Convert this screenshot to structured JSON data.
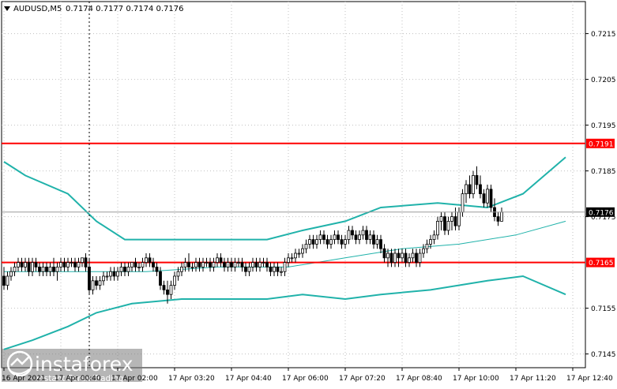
{
  "header": {
    "symbol": "AUDUSD,M5",
    "ohlc": "0.7174 0.7177 0.7174 0.7176"
  },
  "colors": {
    "background": "#ffffff",
    "grid": "#c0c0c0",
    "bullish": "#ffffff",
    "bearish": "#000000",
    "candle_outline": "#000000",
    "band": "#20b2aa",
    "middle_band": "#20b2aa",
    "level_line": "#ff0000",
    "level_label_bg": "#ff0000",
    "price_label_bg": "#000000",
    "crosshair": "#000000"
  },
  "watermark": {
    "brand": "instaforex",
    "tagline": "Instant Forex Trading"
  },
  "chart_data": {
    "type": "candlestick",
    "timeframe": "M5",
    "ylim": [
      0.7142,
      0.7222
    ],
    "y_ticks": [
      "0.7215",
      "0.7205",
      "0.7195",
      "0.7185",
      "0.7175",
      "0.7155",
      "0.7145"
    ],
    "x_ticks": [
      {
        "label": "16 Apr 2021",
        "bar": 0
      },
      {
        "label": "17 Apr 00:40",
        "bar": 16
      },
      {
        "label": "17 Apr 02:00",
        "bar": 32
      },
      {
        "label": "17 Apr 03:20",
        "bar": 48
      },
      {
        "label": "17 Apr 04:40",
        "bar": 64
      },
      {
        "label": "17 Apr 06:00",
        "bar": 80
      },
      {
        "label": "17 Apr 07:20",
        "bar": 96
      },
      {
        "label": "17 Apr 08:40",
        "bar": 112
      },
      {
        "label": "17 Apr 10:00",
        "bar": 128
      },
      {
        "label": "17 Apr 11:20",
        "bar": 144
      },
      {
        "label": "17 Apr 12:40",
        "bar": 160
      }
    ],
    "levels": [
      {
        "value": 0.7191,
        "label": "0.7191"
      },
      {
        "value": 0.7165,
        "label": "0.7165"
      }
    ],
    "current_price": {
      "value": 0.7176,
      "label": "0.7176"
    },
    "crosshair_bar": 24,
    "candles": [
      [
        0.7162,
        0.7164,
        0.7159,
        0.716
      ],
      [
        0.716,
        0.7163,
        0.7159,
        0.7162
      ],
      [
        0.7162,
        0.7164,
        0.7161,
        0.7163
      ],
      [
        0.7163,
        0.7165,
        0.7162,
        0.7164
      ],
      [
        0.7164,
        0.7166,
        0.7163,
        0.7165
      ],
      [
        0.7165,
        0.7166,
        0.7163,
        0.7164
      ],
      [
        0.7164,
        0.7166,
        0.7163,
        0.7165
      ],
      [
        0.7165,
        0.7166,
        0.7162,
        0.7163
      ],
      [
        0.7163,
        0.7166,
        0.7162,
        0.7165
      ],
      [
        0.7165,
        0.7166,
        0.7163,
        0.7164
      ],
      [
        0.7164,
        0.7165,
        0.7162,
        0.7163
      ],
      [
        0.7163,
        0.7165,
        0.7162,
        0.7164
      ],
      [
        0.7164,
        0.7165,
        0.7162,
        0.7163
      ],
      [
        0.7163,
        0.7165,
        0.7162,
        0.7164
      ],
      [
        0.7164,
        0.7166,
        0.7162,
        0.7163
      ],
      [
        0.7163,
        0.7165,
        0.7161,
        0.7164
      ],
      [
        0.7164,
        0.7166,
        0.7163,
        0.7165
      ],
      [
        0.7165,
        0.7166,
        0.7163,
        0.7164
      ],
      [
        0.7164,
        0.7166,
        0.7163,
        0.7165
      ],
      [
        0.7165,
        0.7166,
        0.7164,
        0.7165
      ],
      [
        0.7165,
        0.7166,
        0.7163,
        0.7164
      ],
      [
        0.7164,
        0.7166,
        0.7163,
        0.7165
      ],
      [
        0.7165,
        0.7166,
        0.7164,
        0.7166
      ],
      [
        0.7166,
        0.7167,
        0.7163,
        0.7164
      ],
      [
        0.7164,
        0.7166,
        0.7158,
        0.7159
      ],
      [
        0.7159,
        0.7162,
        0.7158,
        0.7161
      ],
      [
        0.7161,
        0.7162,
        0.7159,
        0.716
      ],
      [
        0.716,
        0.7162,
        0.7159,
        0.7161
      ],
      [
        0.7161,
        0.7163,
        0.716,
        0.7162
      ],
      [
        0.7162,
        0.7163,
        0.7161,
        0.7162
      ],
      [
        0.7162,
        0.7164,
        0.7161,
        0.7163
      ],
      [
        0.7163,
        0.7164,
        0.7161,
        0.7162
      ],
      [
        0.7162,
        0.7164,
        0.7161,
        0.7163
      ],
      [
        0.7163,
        0.7165,
        0.7162,
        0.7164
      ],
      [
        0.7164,
        0.7165,
        0.7162,
        0.7163
      ],
      [
        0.7163,
        0.7165,
        0.7162,
        0.7164
      ],
      [
        0.7164,
        0.7165,
        0.7163,
        0.7165
      ],
      [
        0.7165,
        0.7166,
        0.7163,
        0.7164
      ],
      [
        0.7164,
        0.7165,
        0.7163,
        0.7164
      ],
      [
        0.7164,
        0.7166,
        0.7163,
        0.7165
      ],
      [
        0.7165,
        0.7167,
        0.7164,
        0.7166
      ],
      [
        0.7166,
        0.7167,
        0.7164,
        0.7165
      ],
      [
        0.7165,
        0.7166,
        0.7163,
        0.7164
      ],
      [
        0.7164,
        0.7165,
        0.7162,
        0.7163
      ],
      [
        0.7163,
        0.7164,
        0.7159,
        0.716
      ],
      [
        0.716,
        0.7161,
        0.7158,
        0.7159
      ],
      [
        0.7159,
        0.7161,
        0.7156,
        0.7158
      ],
      [
        0.7158,
        0.7161,
        0.7157,
        0.716
      ],
      [
        0.716,
        0.7163,
        0.7159,
        0.7162
      ],
      [
        0.7162,
        0.7164,
        0.7161,
        0.7163
      ],
      [
        0.7163,
        0.7165,
        0.7162,
        0.7164
      ],
      [
        0.7164,
        0.7166,
        0.7163,
        0.7165
      ],
      [
        0.7165,
        0.7167,
        0.7163,
        0.7164
      ],
      [
        0.7164,
        0.7165,
        0.7163,
        0.7164
      ],
      [
        0.7164,
        0.7166,
        0.7163,
        0.7165
      ],
      [
        0.7165,
        0.7166,
        0.7163,
        0.7164
      ],
      [
        0.7164,
        0.7166,
        0.7163,
        0.7165
      ],
      [
        0.7165,
        0.7166,
        0.7164,
        0.7165
      ],
      [
        0.7165,
        0.7166,
        0.7163,
        0.7164
      ],
      [
        0.7164,
        0.7166,
        0.7163,
        0.7165
      ],
      [
        0.7165,
        0.7167,
        0.7164,
        0.7166
      ],
      [
        0.7166,
        0.7167,
        0.7164,
        0.7165
      ],
      [
        0.7165,
        0.7166,
        0.7163,
        0.7164
      ],
      [
        0.7164,
        0.7166,
        0.7163,
        0.7165
      ],
      [
        0.7165,
        0.7166,
        0.7163,
        0.7164
      ],
      [
        0.7164,
        0.7166,
        0.7163,
        0.7165
      ],
      [
        0.7165,
        0.7166,
        0.7164,
        0.7165
      ],
      [
        0.7165,
        0.7166,
        0.7163,
        0.7164
      ],
      [
        0.7164,
        0.7165,
        0.7162,
        0.7163
      ],
      [
        0.7163,
        0.7165,
        0.7162,
        0.7164
      ],
      [
        0.7164,
        0.7166,
        0.7163,
        0.7165
      ],
      [
        0.7165,
        0.7166,
        0.7163,
        0.7164
      ],
      [
        0.7164,
        0.7166,
        0.7163,
        0.7165
      ],
      [
        0.7165,
        0.7166,
        0.7164,
        0.7165
      ],
      [
        0.7165,
        0.7166,
        0.7163,
        0.7164
      ],
      [
        0.7164,
        0.7165,
        0.7162,
        0.7163
      ],
      [
        0.7163,
        0.7165,
        0.7162,
        0.7164
      ],
      [
        0.7164,
        0.7165,
        0.7162,
        0.7163
      ],
      [
        0.7163,
        0.7164,
        0.7162,
        0.7163
      ],
      [
        0.7163,
        0.7166,
        0.7162,
        0.7165
      ],
      [
        0.7165,
        0.7167,
        0.7164,
        0.7166
      ],
      [
        0.7166,
        0.7167,
        0.7165,
        0.7166
      ],
      [
        0.7166,
        0.7168,
        0.7165,
        0.7167
      ],
      [
        0.7167,
        0.7168,
        0.7166,
        0.7167
      ],
      [
        0.7167,
        0.7169,
        0.7166,
        0.7168
      ],
      [
        0.7168,
        0.717,
        0.7167,
        0.7169
      ],
      [
        0.7169,
        0.7171,
        0.7168,
        0.717
      ],
      [
        0.717,
        0.7171,
        0.7168,
        0.7169
      ],
      [
        0.7169,
        0.7171,
        0.7168,
        0.717
      ],
      [
        0.717,
        0.7172,
        0.7169,
        0.7171
      ],
      [
        0.7171,
        0.7172,
        0.7169,
        0.717
      ],
      [
        0.717,
        0.7171,
        0.7168,
        0.7169
      ],
      [
        0.7169,
        0.7171,
        0.7168,
        0.717
      ],
      [
        0.717,
        0.7172,
        0.7169,
        0.7171
      ],
      [
        0.7171,
        0.7172,
        0.7169,
        0.717
      ],
      [
        0.717,
        0.7171,
        0.7168,
        0.7169
      ],
      [
        0.7169,
        0.7171,
        0.7168,
        0.717
      ],
      [
        0.717,
        0.7173,
        0.7169,
        0.7172
      ],
      [
        0.7172,
        0.7173,
        0.717,
        0.7171
      ],
      [
        0.7171,
        0.7172,
        0.7169,
        0.717
      ],
      [
        0.717,
        0.7172,
        0.7169,
        0.7171
      ],
      [
        0.7171,
        0.7173,
        0.717,
        0.7172
      ],
      [
        0.7172,
        0.7173,
        0.7169,
        0.717
      ],
      [
        0.717,
        0.7172,
        0.7169,
        0.7171
      ],
      [
        0.7171,
        0.7172,
        0.7168,
        0.7169
      ],
      [
        0.7169,
        0.7171,
        0.7168,
        0.717
      ],
      [
        0.717,
        0.7171,
        0.7167,
        0.7168
      ],
      [
        0.7168,
        0.7169,
        0.7165,
        0.7166
      ],
      [
        0.7166,
        0.7168,
        0.7164,
        0.7167
      ],
      [
        0.7167,
        0.7168,
        0.7164,
        0.7165
      ],
      [
        0.7165,
        0.7168,
        0.7164,
        0.7167
      ],
      [
        0.7167,
        0.7168,
        0.7164,
        0.7166
      ],
      [
        0.7166,
        0.7168,
        0.7165,
        0.7167
      ],
      [
        0.7167,
        0.7168,
        0.7164,
        0.7165
      ],
      [
        0.7165,
        0.7167,
        0.7164,
        0.7166
      ],
      [
        0.7166,
        0.7168,
        0.7165,
        0.7167
      ],
      [
        0.7167,
        0.7168,
        0.7164,
        0.7165
      ],
      [
        0.7165,
        0.7168,
        0.7164,
        0.7167
      ],
      [
        0.7167,
        0.7169,
        0.7166,
        0.7168
      ],
      [
        0.7168,
        0.717,
        0.7167,
        0.7169
      ],
      [
        0.7169,
        0.7171,
        0.7168,
        0.717
      ],
      [
        0.717,
        0.7172,
        0.7169,
        0.7171
      ],
      [
        0.7171,
        0.7175,
        0.717,
        0.7174
      ],
      [
        0.7174,
        0.7176,
        0.7172,
        0.7175
      ],
      [
        0.7175,
        0.7176,
        0.7171,
        0.7172
      ],
      [
        0.7172,
        0.7175,
        0.7171,
        0.7174
      ],
      [
        0.7174,
        0.7176,
        0.7172,
        0.7175
      ],
      [
        0.7175,
        0.7177,
        0.7172,
        0.7173
      ],
      [
        0.7173,
        0.7177,
        0.7172,
        0.7176
      ],
      [
        0.7176,
        0.7181,
        0.7175,
        0.718
      ],
      [
        0.718,
        0.7183,
        0.7178,
        0.7182
      ],
      [
        0.7182,
        0.7184,
        0.7179,
        0.718
      ],
      [
        0.718,
        0.7185,
        0.7179,
        0.7184
      ],
      [
        0.7184,
        0.7186,
        0.7181,
        0.7182
      ],
      [
        0.7182,
        0.7184,
        0.7179,
        0.718
      ],
      [
        0.718,
        0.7181,
        0.7177,
        0.7178
      ],
      [
        0.7178,
        0.7182,
        0.7177,
        0.7181
      ],
      [
        0.7181,
        0.7182,
        0.7176,
        0.7177
      ],
      [
        0.7177,
        0.7179,
        0.7174,
        0.7175
      ],
      [
        0.7175,
        0.7176,
        0.7173,
        0.7174
      ],
      [
        0.7174,
        0.7177,
        0.7174,
        0.7176
      ]
    ],
    "bands": {
      "upper": [
        [
          0,
          0.7187
        ],
        [
          6,
          0.7184
        ],
        [
          18,
          0.718
        ],
        [
          26,
          0.7174
        ],
        [
          34,
          0.717
        ],
        [
          48,
          0.717
        ],
        [
          62,
          0.717
        ],
        [
          74,
          0.717
        ],
        [
          84,
          0.7172
        ],
        [
          96,
          0.7174
        ],
        [
          106,
          0.7177
        ],
        [
          122,
          0.7178
        ],
        [
          136,
          0.7177
        ],
        [
          146,
          0.718
        ],
        [
          158,
          0.7188
        ]
      ],
      "middle": [
        [
          0,
          0.7163
        ],
        [
          20,
          0.7163
        ],
        [
          40,
          0.7163
        ],
        [
          60,
          0.7164
        ],
        [
          80,
          0.7164
        ],
        [
          96,
          0.7166
        ],
        [
          112,
          0.7168
        ],
        [
          128,
          0.7169
        ],
        [
          144,
          0.7171
        ],
        [
          158,
          0.7174
        ]
      ],
      "lower": [
        [
          0,
          0.7146
        ],
        [
          8,
          0.7148
        ],
        [
          18,
          0.7151
        ],
        [
          26,
          0.7154
        ],
        [
          36,
          0.7156
        ],
        [
          50,
          0.7157
        ],
        [
          64,
          0.7157
        ],
        [
          74,
          0.7157
        ],
        [
          84,
          0.7158
        ],
        [
          96,
          0.7157
        ],
        [
          106,
          0.7158
        ],
        [
          120,
          0.7159
        ],
        [
          136,
          0.7161
        ],
        [
          146,
          0.7162
        ],
        [
          158,
          0.7158
        ]
      ]
    }
  }
}
